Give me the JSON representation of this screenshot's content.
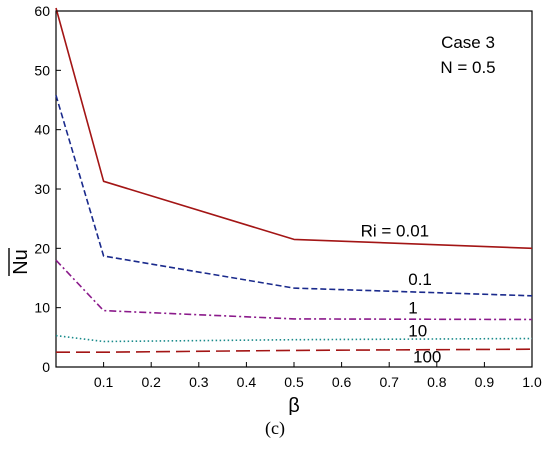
{
  "caption": "(c)",
  "chart_data": {
    "type": "line",
    "title": "",
    "xlabel": "β",
    "ylabel": "Nu",
    "xlim": [
      0,
      1.0
    ],
    "ylim": [
      0,
      60
    ],
    "x_ticks": [
      "0.1",
      "0.2",
      "0.3",
      "0.4",
      "0.5",
      "0.6",
      "0.7",
      "0.8",
      "0.9",
      "1.0"
    ],
    "y_ticks": [
      "0",
      "10",
      "20",
      "30",
      "40",
      "50",
      "60"
    ],
    "grid": false,
    "legend": "none",
    "info_box": [
      "Case 3",
      "N = 0.5"
    ],
    "series": [
      {
        "name": "Ri = 0.01",
        "color": "#a31515",
        "style": "solid",
        "x": [
          0.0,
          0.1,
          0.5,
          1.0
        ],
        "y": [
          60.5,
          31.3,
          21.5,
          20.0
        ]
      },
      {
        "name": "0.1",
        "color": "#1a2a8c",
        "style": "dash",
        "x": [
          0.0,
          0.1,
          0.5,
          1.0
        ],
        "y": [
          45.8,
          18.7,
          13.3,
          12.0
        ]
      },
      {
        "name": "1",
        "color": "#8b1a8b",
        "style": "dashdot",
        "x": [
          0.0,
          0.1,
          0.5,
          1.0
        ],
        "y": [
          18.0,
          9.5,
          8.1,
          8.0
        ]
      },
      {
        "name": "10",
        "color": "#1a8b8b",
        "style": "dot",
        "x": [
          0.0,
          0.1,
          0.5,
          1.0
        ],
        "y": [
          5.3,
          4.3,
          4.6,
          4.8
        ]
      },
      {
        "name": "100",
        "color": "#a31515",
        "style": "longdash",
        "x": [
          0.0,
          0.1,
          0.5,
          1.0
        ],
        "y": [
          2.5,
          2.5,
          2.8,
          3.0
        ]
      }
    ],
    "annotations": [
      {
        "text": "Ri = 0.01",
        "x": 0.64,
        "y": 22.0
      },
      {
        "text": "0.1",
        "x": 0.74,
        "y": 13.8
      },
      {
        "text": "1",
        "x": 0.74,
        "y": 9.0
      },
      {
        "text": "10",
        "x": 0.74,
        "y": 5.1
      },
      {
        "text": "100",
        "x": 0.75,
        "y": 0.8
      }
    ]
  }
}
